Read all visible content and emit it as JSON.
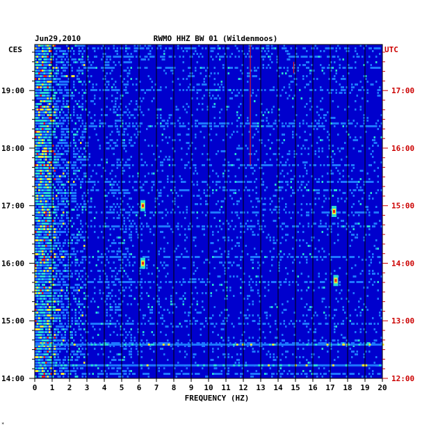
{
  "chart_data": {
    "type": "heatmap",
    "title": "RWMO HHZ BW 01 (Wildenmoos)",
    "date": "Jun29,2010",
    "xlabel": "FREQUENCY (HZ)",
    "xlim": [
      0,
      20
    ],
    "x_ticks": [
      0,
      1,
      2,
      3,
      4,
      5,
      6,
      7,
      8,
      9,
      10,
      11,
      12,
      13,
      14,
      15,
      16,
      17,
      18,
      19,
      20
    ],
    "left_axis": {
      "timezone": "CES",
      "tick_labels": [
        "19:00",
        "18:00",
        "17:00",
        "16:00",
        "15:00",
        "14:00"
      ]
    },
    "right_axis": {
      "timezone": "UTC",
      "tick_labels": [
        "17:00",
        "16:00",
        "15:00",
        "14:00",
        "13:00",
        "12:00"
      ],
      "color": "#cc0000"
    },
    "ylim_hours_ces": [
      14.0,
      19.8
    ],
    "colors": {
      "background": "#0000cd",
      "low": "#1414d2",
      "mid": "#1e78ff",
      "cyan": "#28dcd2",
      "yellow": "#f0e632",
      "red": "#e61e1e",
      "grid": "#000000"
    },
    "features": [
      {
        "type": "low_freq_energy",
        "freq_range": [
          0,
          3
        ],
        "intensity": "high"
      },
      {
        "type": "line",
        "freq": 12.4,
        "time_range": [
          17.7,
          19.8
        ],
        "color": "red"
      },
      {
        "type": "line",
        "freq": 14.9,
        "time_range": [
          19.3,
          19.5
        ],
        "color": "red"
      },
      {
        "type": "burst",
        "freq": 6.2,
        "time": 17.0
      },
      {
        "type": "burst",
        "freq": 6.2,
        "time": 16.0
      },
      {
        "type": "burst",
        "freq": 17.2,
        "time": 16.9
      },
      {
        "type": "burst",
        "freq": 17.3,
        "time": 15.7
      },
      {
        "type": "band",
        "time": 14.58,
        "freq_range": [
          0,
          20
        ]
      },
      {
        "type": "band",
        "time": 14.22,
        "freq_range": [
          0,
          20
        ]
      }
    ]
  },
  "footer": {
    "mark": "*"
  }
}
